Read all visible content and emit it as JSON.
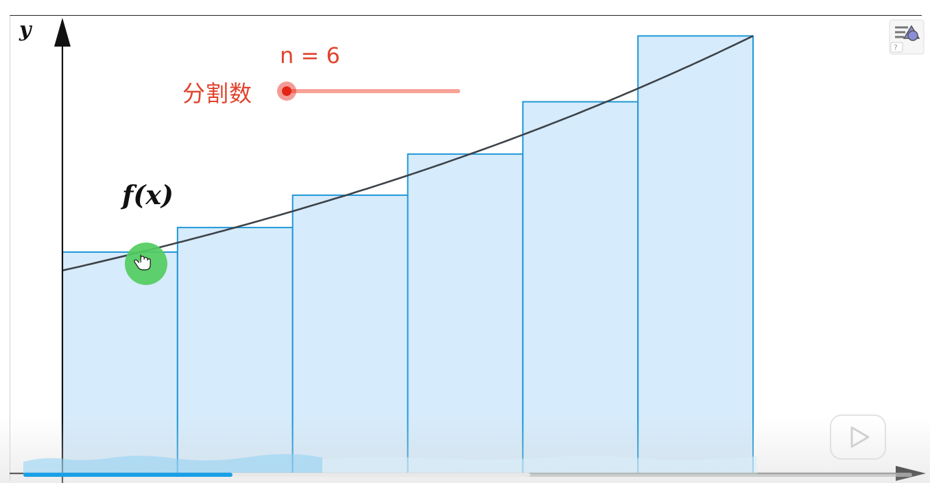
{
  "graph": {
    "y_axis_label": "y",
    "function_label": "f(x)",
    "slider_label": "分割数",
    "slider_value_text": "n = 6",
    "n": 6,
    "rectangle_heights": [
      0.4947,
      0.5496,
      0.6219,
      0.7138,
      0.8307,
      0.9779
    ],
    "curve_start": 0.4536,
    "curve_end": 0.9779,
    "colors": {
      "rect_fill": "#d6ebfb",
      "rect_stroke": "#1f97d8",
      "curve": "#3c4248",
      "slider_track": "#f7a398",
      "slider_point": "#e42416",
      "text_red": "#e0432c",
      "cursor_circle": "#52cc5f",
      "progress": "#1aa0e8"
    }
  },
  "player": {
    "progress": 0.235,
    "buffered": 0.57
  },
  "icons": {
    "menu": "geogebra-style-menu-icon",
    "play": "bilibili-tv-play-icon",
    "cursor": "hand-pointer-icon"
  }
}
